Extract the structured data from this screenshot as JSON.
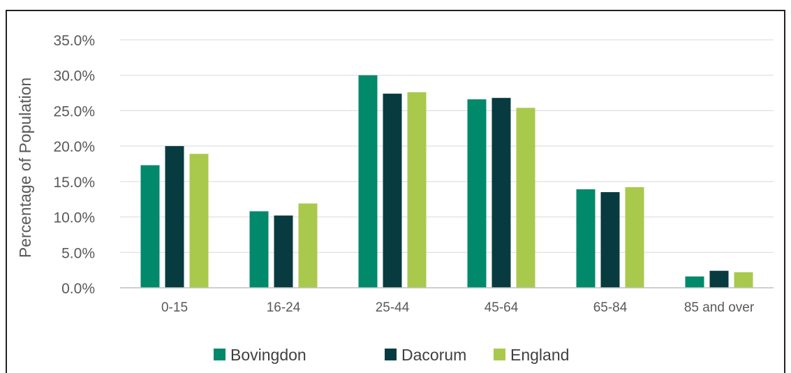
{
  "chart_data": {
    "type": "bar",
    "title": "",
    "xlabel": "",
    "ylabel": "Percentage of Population",
    "ylim": [
      0,
      35
    ],
    "yticks": [
      "0.0%",
      "5.0%",
      "10.0%",
      "15.0%",
      "20.0%",
      "25.0%",
      "30.0%",
      "35.0%"
    ],
    "categories": [
      "0-15",
      "16-24",
      "25-44",
      "45-64",
      "65-84",
      "85 and over"
    ],
    "series": [
      {
        "name": "Bovingdon",
        "color": "#00896b",
        "values": [
          17.3,
          10.8,
          30.0,
          26.6,
          13.9,
          1.6
        ]
      },
      {
        "name": "Dacorum",
        "color": "#073b3f",
        "values": [
          20.0,
          10.2,
          27.4,
          26.8,
          13.5,
          2.4
        ]
      },
      {
        "name": "England",
        "color": "#a9c94c",
        "values": [
          18.9,
          11.9,
          27.6,
          25.4,
          14.2,
          2.2
        ]
      }
    ],
    "grid": true,
    "legend": "bottom"
  }
}
